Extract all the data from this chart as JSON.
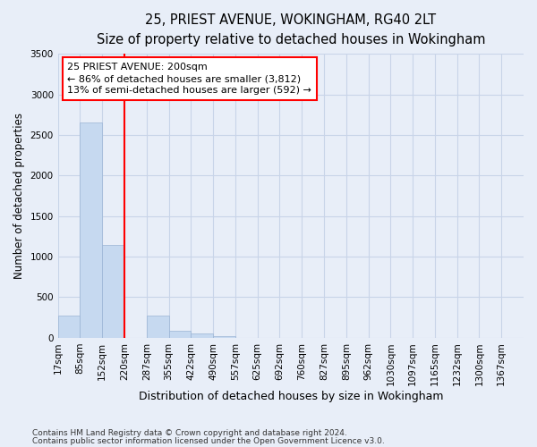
{
  "title_line1": "25, PRIEST AVENUE, WOKINGHAM, RG40 2LT",
  "title_line2": "Size of property relative to detached houses in Wokingham",
  "xlabel": "Distribution of detached houses by size in Wokingham",
  "ylabel": "Number of detached properties",
  "footnote1": "Contains HM Land Registry data © Crown copyright and database right 2024.",
  "footnote2": "Contains public sector information licensed under the Open Government Licence v3.0.",
  "bin_labels": [
    "17sqm",
    "85sqm",
    "152sqm",
    "220sqm",
    "287sqm",
    "355sqm",
    "422sqm",
    "490sqm",
    "557sqm",
    "625sqm",
    "692sqm",
    "760sqm",
    "827sqm",
    "895sqm",
    "962sqm",
    "1030sqm",
    "1097sqm",
    "1165sqm",
    "1232sqm",
    "1300sqm",
    "1367sqm"
  ],
  "bar_values": [
    270,
    2650,
    1150,
    0,
    270,
    90,
    50,
    20,
    0,
    0,
    0,
    0,
    0,
    0,
    0,
    0,
    0,
    0,
    0,
    0,
    0
  ],
  "bar_color": "#c6d9f0",
  "bar_edge_color": "#9ab4d4",
  "vline_color": "red",
  "annotation_line1": "25 PRIEST AVENUE: 200sqm",
  "annotation_line2": "← 86% of detached houses are smaller (3,812)",
  "annotation_line3": "13% of semi-detached houses are larger (592) →",
  "annotation_box_color": "white",
  "annotation_box_edge_color": "red",
  "ylim": [
    0,
    3500
  ],
  "yticks": [
    0,
    500,
    1000,
    1500,
    2000,
    2500,
    3000,
    3500
  ],
  "grid_color": "#c8d4e8",
  "background_color": "#e8eef8",
  "title_fontsize": 10.5,
  "subtitle_fontsize": 9.5,
  "ylabel_fontsize": 8.5,
  "xlabel_fontsize": 9,
  "tick_fontsize": 7.5,
  "annotation_fontsize": 8,
  "footnote_fontsize": 6.5
}
